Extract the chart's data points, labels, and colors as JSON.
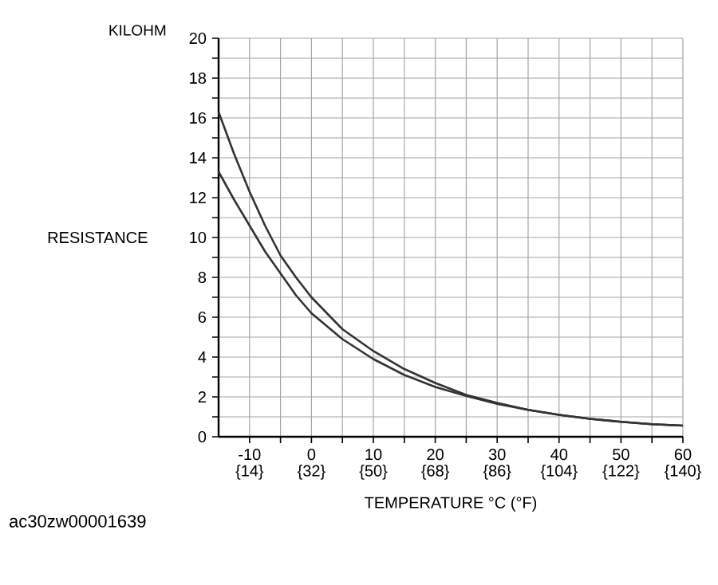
{
  "chart_data": {
    "type": "line",
    "xlabel": "TEMPERATURE    °C (°F)",
    "ylabel": "RESISTANCE",
    "annotations": [
      "KILOHM",
      "ac30zw00001639"
    ],
    "xlim": [
      -15,
      60
    ],
    "ylim": [
      0,
      20
    ],
    "xticks": [
      -10,
      {
        "value": -5,
        "label": null
      },
      0,
      {
        "value": 5,
        "label": null
      },
      10,
      {
        "value": 15,
        "label": null
      },
      20,
      {
        "value": 25,
        "label": null
      },
      30,
      {
        "value": 35,
        "label": null
      },
      40,
      {
        "value": 45,
        "label": null
      },
      50,
      {
        "value": 55,
        "label": null
      },
      60
    ],
    "x2lim": [
      5,
      140
    ],
    "x2ticks": [
      {
        "value": 14,
        "label": "{14}"
      },
      {
        "value": 32,
        "label": "{32}"
      },
      {
        "value": 50,
        "label": "{50}"
      },
      {
        "value": 68,
        "label": "{68}"
      },
      {
        "value": 86,
        "label": "{86}"
      },
      {
        "value": 104,
        "label": "{104}"
      },
      {
        "value": 122,
        "label": "{122}"
      },
      {
        "value": 140,
        "label": "{140}"
      }
    ],
    "yticks": [
      0,
      {
        "value": 1,
        "label": null
      },
      2,
      {
        "value": 3,
        "label": null
      },
      4,
      {
        "value": 5,
        "label": null
      },
      6,
      {
        "value": 7,
        "label": null
      },
      8,
      {
        "value": 9,
        "label": null
      },
      10,
      {
        "value": 11,
        "label": null
      },
      12,
      {
        "value": 13,
        "label": null
      },
      14,
      {
        "value": 15,
        "label": null
      },
      16,
      {
        "value": 17,
        "label": null
      },
      18,
      {
        "value": 19,
        "label": null
      },
      20
    ],
    "grid": true,
    "marker": "none",
    "line_style": "solid",
    "series": [
      {
        "color": "#333333",
        "x": [
          -15,
          -12.5,
          -10,
          -7.5,
          -5,
          -2.5,
          0,
          5,
          10,
          15,
          20,
          25,
          30,
          35,
          40,
          45,
          50,
          55,
          60
        ],
        "values": [
          16.3,
          14.2,
          12.3,
          10.6,
          9.1,
          8.0,
          7.0,
          5.4,
          4.3,
          3.4,
          2.7,
          2.1,
          1.7,
          1.35,
          1.1,
          0.9,
          0.75,
          0.63,
          0.56
        ]
      },
      {
        "color": "#333333",
        "x": [
          -15,
          -12.5,
          -10,
          -7.5,
          -5,
          -2.5,
          0,
          5,
          10,
          15,
          20,
          25,
          30,
          35,
          40,
          45,
          50,
          55,
          60
        ],
        "values": [
          13.3,
          11.9,
          10.6,
          9.3,
          8.2,
          7.1,
          6.2,
          4.9,
          3.9,
          3.1,
          2.5,
          2.05,
          1.65,
          1.35,
          1.1,
          0.9,
          0.75,
          0.63,
          0.56
        ]
      }
    ]
  }
}
